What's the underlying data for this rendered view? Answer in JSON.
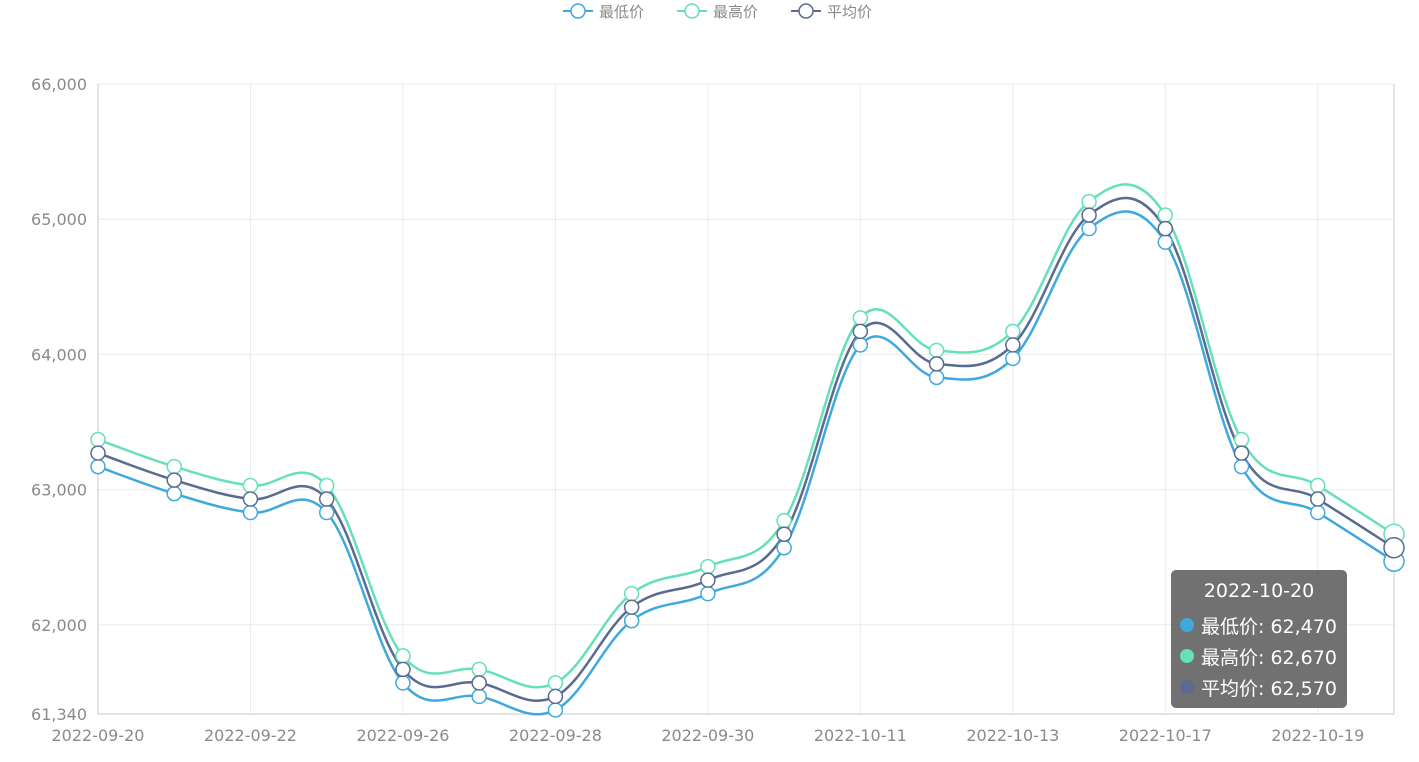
{
  "chart_data": {
    "type": "line",
    "categories": [
      "2022-09-20",
      "2022-09-21",
      "2022-09-22",
      "2022-09-23",
      "2022-09-26",
      "2022-09-27",
      "2022-09-28",
      "2022-09-29",
      "2022-09-30",
      "2022-10-10",
      "2022-10-11",
      "2022-10-12",
      "2022-10-13",
      "2022-10-14",
      "2022-10-17",
      "2022-10-18",
      "2022-10-19",
      "2022-10-20"
    ],
    "x_tick_labels": [
      "2022-09-20",
      "2022-09-22",
      "2022-09-26",
      "2022-09-28",
      "2022-09-30",
      "2022-10-11",
      "2022-10-13",
      "2022-10-17",
      "2022-10-19"
    ],
    "y_ticks": [
      61340,
      62000,
      63000,
      64000,
      65000,
      66000
    ],
    "y_tick_labels": [
      "61,340",
      "62,000",
      "63,000",
      "64,000",
      "65,000",
      "66,000"
    ],
    "ylim": [
      61340,
      66000
    ],
    "grid": true,
    "legend_position": "top-center",
    "series": [
      {
        "name": "最低价",
        "color": "#3fa9de",
        "values": [
          63170,
          62970,
          62830,
          62830,
          61570,
          61470,
          61370,
          62030,
          62230,
          62570,
          64070,
          63830,
          63970,
          64930,
          64830,
          63170,
          62830,
          62470
        ]
      },
      {
        "name": "最高价",
        "color": "#66e0b9",
        "values": [
          63370,
          63170,
          63030,
          63030,
          61770,
          61670,
          61570,
          62230,
          62430,
          62770,
          64270,
          64030,
          64170,
          65130,
          65030,
          63370,
          63030,
          62670
        ]
      },
      {
        "name": "平均价",
        "color": "#5a6a90",
        "values": [
          63270,
          63070,
          62930,
          62930,
          61670,
          61570,
          61470,
          62130,
          62330,
          62670,
          64170,
          63930,
          64070,
          65030,
          64930,
          63270,
          62930,
          62570
        ]
      }
    ]
  },
  "tooltip": {
    "title": "2022-10-20",
    "rows": [
      {
        "label": "最低价: 62,470",
        "color": "#3fa9de"
      },
      {
        "label": "最高价: 62,670",
        "color": "#66e0b9"
      },
      {
        "label": "平均价: 62,570",
        "color": "#5a6a90"
      }
    ]
  }
}
